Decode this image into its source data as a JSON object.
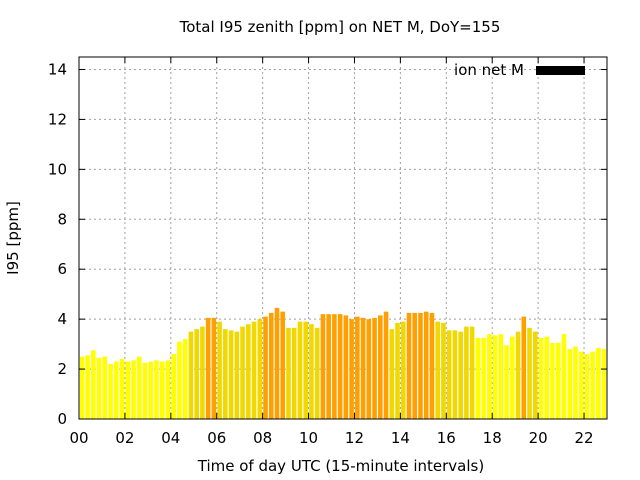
{
  "chart_data": {
    "type": "bar",
    "title": "Total I95 zenith [ppm] on NET M, DoY=155",
    "xlabel": "Time of day UTC (15-minute intervals)",
    "ylabel": "I95 [ppm]",
    "xlim": [
      0,
      23
    ],
    "ylim": [
      0,
      14.5
    ],
    "grid": true,
    "x_ticks": [
      0,
      2,
      4,
      6,
      8,
      10,
      12,
      14,
      16,
      18,
      20,
      22
    ],
    "x_tick_labels": [
      "00",
      "02",
      "04",
      "06",
      "08",
      "10",
      "12",
      "14",
      "16",
      "18",
      "20",
      "22"
    ],
    "y_ticks": [
      0,
      2,
      4,
      6,
      8,
      10,
      12,
      14
    ],
    "y_tick_labels": [
      "0",
      "2",
      "4",
      "6",
      "8",
      "10",
      "12",
      "14"
    ],
    "legend": {
      "label": "ion net M",
      "color": "#000000",
      "position": "top-right"
    },
    "bar_width_hours": 0.2,
    "colors": {
      "low": "#ffff00",
      "mid": "#f0d800",
      "high": "#ffa000",
      "background": "#ffffff"
    },
    "series": [
      {
        "x": [
          0.125,
          0.375,
          0.625,
          0.875,
          1.125,
          1.375,
          1.625,
          1.875,
          2.125,
          2.375,
          2.625,
          2.875,
          3.125,
          3.375,
          3.625,
          3.875,
          4.125,
          4.375,
          4.625,
          4.875,
          5.125,
          5.375,
          5.625,
          5.875,
          6.125,
          6.375,
          6.625,
          6.875,
          7.125,
          7.375,
          7.625,
          7.875,
          8.125,
          8.375,
          8.625,
          8.875,
          9.125,
          9.375,
          9.625,
          9.875,
          10.125,
          10.375,
          10.625,
          10.875,
          11.125,
          11.375,
          11.625,
          11.875,
          12.125,
          12.375,
          12.625,
          12.875,
          13.125,
          13.375,
          13.625,
          13.875,
          14.125,
          14.375,
          14.625,
          14.875,
          15.125,
          15.375,
          15.625,
          15.875,
          16.125,
          16.375,
          16.625,
          16.875,
          17.125,
          17.375,
          17.625,
          17.875,
          18.125,
          18.375,
          18.625,
          18.875,
          19.125,
          19.375,
          19.625,
          19.875,
          20.125,
          20.375,
          20.625,
          20.875,
          21.125,
          21.375,
          21.625,
          21.875,
          22.125,
          22.375,
          22.625,
          22.875
        ],
        "values": [
          2.5,
          2.55,
          2.75,
          2.45,
          2.5,
          2.2,
          2.3,
          2.4,
          2.3,
          2.35,
          2.5,
          2.25,
          2.3,
          2.35,
          2.3,
          2.35,
          2.6,
          3.1,
          3.2,
          3.5,
          3.6,
          3.7,
          4.05,
          4.05,
          3.9,
          3.6,
          3.55,
          3.5,
          3.7,
          3.8,
          3.9,
          4.0,
          4.1,
          4.25,
          4.45,
          4.3,
          3.65,
          3.65,
          3.9,
          3.9,
          3.8,
          3.65,
          4.2,
          4.2,
          4.2,
          4.2,
          4.15,
          4.0,
          4.1,
          4.05,
          4.0,
          4.05,
          4.15,
          4.3,
          3.6,
          3.85,
          3.9,
          4.25,
          4.25,
          4.25,
          4.3,
          4.25,
          3.9,
          3.85,
          3.55,
          3.55,
          3.5,
          3.7,
          3.7,
          3.25,
          3.25,
          3.4,
          3.35,
          3.4,
          2.95,
          3.3,
          3.5,
          4.1,
          3.65,
          3.5,
          3.25,
          3.3,
          3.05,
          3.05,
          3.4,
          2.8,
          2.9,
          2.7,
          2.6,
          2.7,
          2.85,
          2.8
        ],
        "levels": [
          "low",
          "low",
          "low",
          "low",
          "low",
          "low",
          "low",
          "low",
          "low",
          "low",
          "low",
          "low",
          "low",
          "low",
          "low",
          "low",
          "low",
          "low",
          "low",
          "low",
          "low",
          "low",
          "high",
          "high",
          "low",
          "low",
          "low",
          "low",
          "low",
          "low",
          "low",
          "low",
          "high",
          "high",
          "high",
          "high",
          "low",
          "low",
          "low",
          "low",
          "low",
          "low",
          "high",
          "high",
          "high",
          "high",
          "high",
          "high",
          "high",
          "high",
          "high",
          "high",
          "high",
          "high",
          "low",
          "low",
          "low",
          "high",
          "high",
          "high",
          "high",
          "high",
          "low",
          "low",
          "low",
          "low",
          "low",
          "low",
          "low",
          "low",
          "low",
          "low",
          "low",
          "low",
          "low",
          "low",
          "low",
          "high",
          "low",
          "low",
          "low",
          "low",
          "low",
          "low",
          "low",
          "low",
          "low",
          "low",
          "low",
          "low",
          "low",
          "low"
        ]
      }
    ]
  }
}
